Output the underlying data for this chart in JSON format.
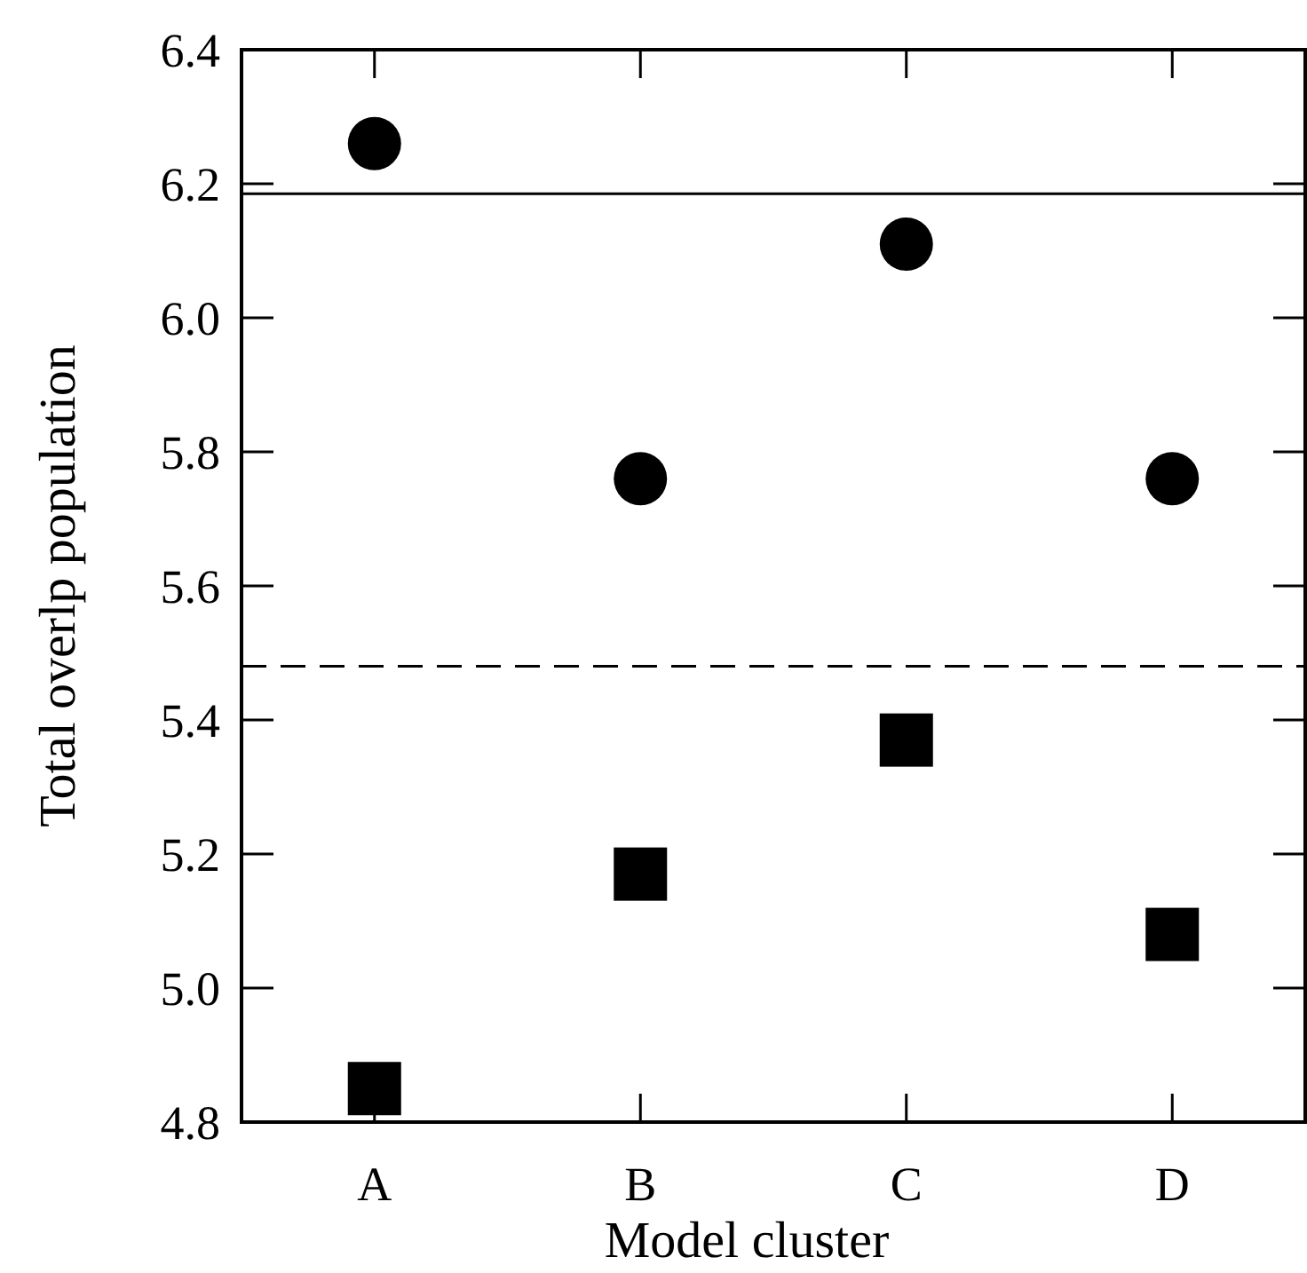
{
  "chart_data": {
    "type": "scatter",
    "xlabel": "Model cluster",
    "ylabel": "Total overlp population",
    "categories": [
      "A",
      "B",
      "C",
      "D"
    ],
    "series": [
      {
        "color": "#000000",
        "marker": "circle",
        "values": [
          6.26,
          5.76,
          6.11,
          5.76
        ]
      },
      {
        "color": "#000000",
        "marker": "square",
        "values": [
          4.85,
          5.17,
          5.37,
          5.08
        ]
      }
    ],
    "ylim": [
      4.8,
      6.4
    ],
    "yticks": [
      {
        "value": 4.8,
        "label": "4.8"
      },
      {
        "value": 5.0,
        "label": "5.0"
      },
      {
        "value": 5.2,
        "label": "5.2"
      },
      {
        "value": 5.4,
        "label": "5.4"
      },
      {
        "value": 5.6,
        "label": "5.6"
      },
      {
        "value": 5.8,
        "label": "5.8"
      },
      {
        "value": 6.0,
        "label": "6.0"
      },
      {
        "value": 6.2,
        "label": "6.2"
      },
      {
        "value": 6.4,
        "label": "6.4"
      }
    ],
    "ref_lines": [
      {
        "axis": "y",
        "value": 6.185,
        "color": "#000000",
        "line_style": "solid"
      },
      {
        "axis": "y",
        "value": 5.48,
        "color": "#000000",
        "line_style": "dashed"
      }
    ]
  }
}
